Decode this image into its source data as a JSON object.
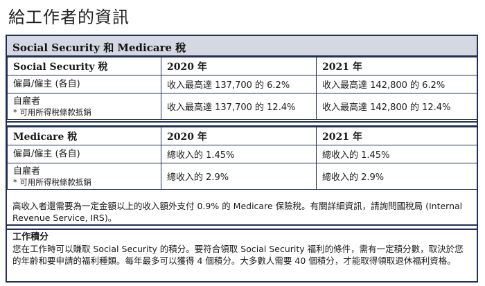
{
  "page_title": "給工作者的資訊",
  "banner": "Social Security 和 Medicare 稅",
  "social_security": {
    "header": [
      "Social Security 稅",
      "2020 年",
      "2021 年"
    ],
    "rows": [
      {
        "label": "僱員/僱主 (各自)",
        "sublabel": "",
        "y2020": "收入最高達 137,700 的 6.2%",
        "y2021": "收入最高達 142,800 的 6.2%"
      },
      {
        "label": "自雇者",
        "sublabel": "* 可用所得稅條款抵銷",
        "y2020": "收入最高達 137,700 的 12.4%",
        "y2021": "收入最高達 142,800 的 12.4%"
      }
    ]
  },
  "medicare": {
    "header": [
      "Medicare 稅",
      "2020 年",
      "2021 年"
    ],
    "rows": [
      {
        "label": "僱員/僱主 (各自)",
        "sublabel": "",
        "y2020": "總收入的 1.45%",
        "y2021": "總收入的 1.45%"
      },
      {
        "label": "自雇者",
        "sublabel": "* 可用所得稅條款抵銷",
        "y2020": "總收入的 2.9%",
        "y2021": "總收入的 2.9%"
      }
    ]
  },
  "note": "高收入者還需要為一定金額以上的收入額外支付 0.9% 的 Medicare 保險稅。有關詳細資訊，請詢問國稅局 (Internal Revenue Service, IRS)。",
  "work_credits": {
    "heading": "工作積分",
    "body": "您在工作時可以賺取 Social Security 的積分。要符合領取 Social Security 福利的條件，需有一定積分數，取決於您的年齡和要申請的福利種類。每年最多可以獲得 4 個積分。大多數人需要 40 個積分，才能取得領取退休福利資格。"
  }
}
